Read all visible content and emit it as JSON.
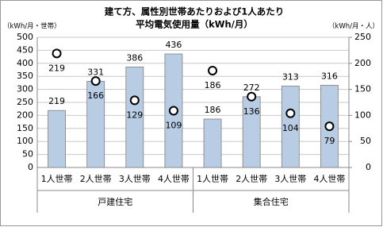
{
  "chart_data": {
    "type": "bar",
    "title": [
      "建て方、属性別世帯あたりおよび1人あたり",
      "平均電気使用量（kWh/月）"
    ],
    "y_label": "（kWh/月・世帯）",
    "y2_label": "（kWh/月・人）",
    "categories": [
      "1人世帯",
      "2人世帯",
      "3人世帯",
      "4人世帯",
      "1人世帯",
      "2人世帯",
      "3人世帯",
      "4人世帯"
    ],
    "groups": [
      "戸建住宅",
      "集合住宅"
    ],
    "series": [
      {
        "type": "bar",
        "color": "#b8cce4",
        "values": [
          219,
          331,
          386,
          436,
          186,
          272,
          313,
          316
        ]
      },
      {
        "type": "scatter",
        "color": "#ffffff",
        "axis": "y2",
        "values": [
          219,
          166,
          129,
          109,
          186,
          136,
          104,
          79
        ]
      }
    ],
    "ylim": [
      0,
      500
    ],
    "yticks": [
      0,
      50,
      100,
      150,
      200,
      250,
      300,
      350,
      400,
      450,
      500
    ],
    "y2lim": [
      0,
      250
    ],
    "y2ticks": [
      0,
      50,
      100,
      150,
      200,
      250
    ],
    "grid": true
  }
}
